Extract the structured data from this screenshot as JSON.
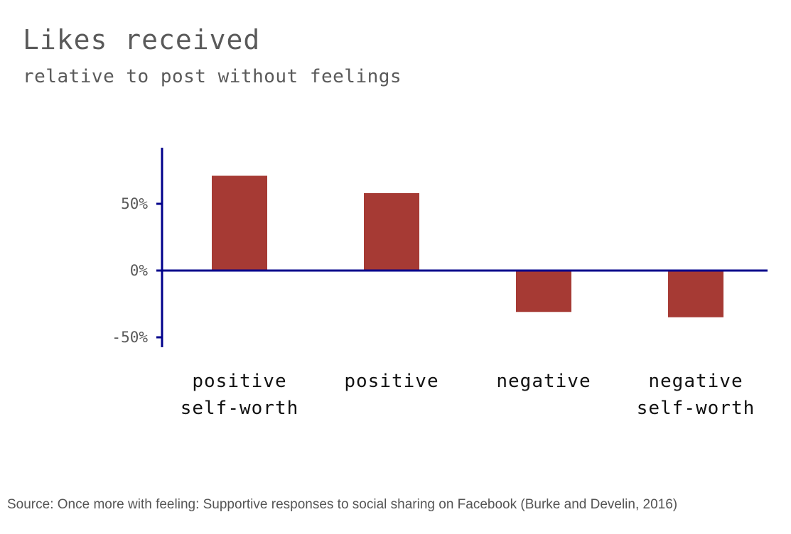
{
  "chart_data": {
    "type": "bar",
    "title": "Likes received",
    "subtitle": "relative to post without feelings",
    "categories": [
      [
        "positive",
        "self-worth"
      ],
      [
        "positive"
      ],
      [
        "negative"
      ],
      [
        "negative",
        "self-worth"
      ]
    ],
    "values": [
      71,
      58,
      -31,
      -35
    ],
    "unit": "%",
    "ylim": [
      -57,
      91
    ],
    "yticks": [
      {
        "value": 50,
        "label": "50%"
      },
      {
        "value": 0,
        "label": "0%"
      },
      {
        "value": -50,
        "label": "-50%"
      }
    ],
    "grid": false,
    "legend": "none",
    "colors": {
      "bar": "#a63a34",
      "axis": "#00008b"
    }
  },
  "source": "Source: Once more with feeling: Supportive responses to social sharing on Facebook (Burke and Develin, 2016)"
}
